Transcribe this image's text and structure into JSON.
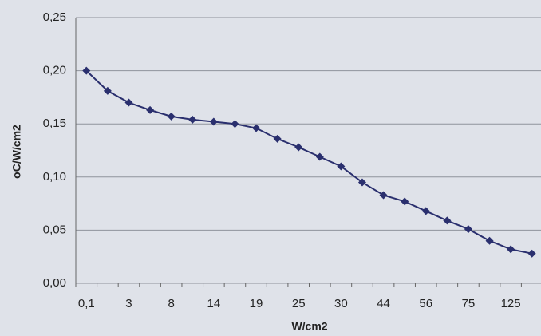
{
  "chart_data": {
    "type": "line",
    "x_label": "W/cm2",
    "y_label": "oC/W/cm2",
    "categories": [
      "0,1",
      null,
      "3",
      null,
      "8",
      null,
      "14",
      null,
      "19",
      null,
      "25",
      null,
      "30",
      null,
      "44",
      null,
      "56",
      null,
      "75",
      null,
      "125",
      null
    ],
    "series": [
      {
        "color": "#2a2f6e",
        "values": [
          0.2,
          0.181,
          0.17,
          0.163,
          0.157,
          0.154,
          0.152,
          0.15,
          0.146,
          0.136,
          0.128,
          0.119,
          0.11,
          0.095,
          0.083,
          0.077,
          0.068,
          0.059,
          0.051,
          0.04,
          0.032,
          0.028
        ]
      }
    ],
    "ylim": [
      0,
      0.25
    ],
    "yticks": [
      {
        "value": 0,
        "label": "0,00"
      },
      {
        "value": 0.05,
        "label": "0,05"
      },
      {
        "value": 0.1,
        "label": "0,10"
      },
      {
        "value": 0.15,
        "label": "0,15"
      },
      {
        "value": 0.2,
        "label": "0,20"
      },
      {
        "value": 0.25,
        "label": "0,25"
      }
    ],
    "grid": true
  }
}
